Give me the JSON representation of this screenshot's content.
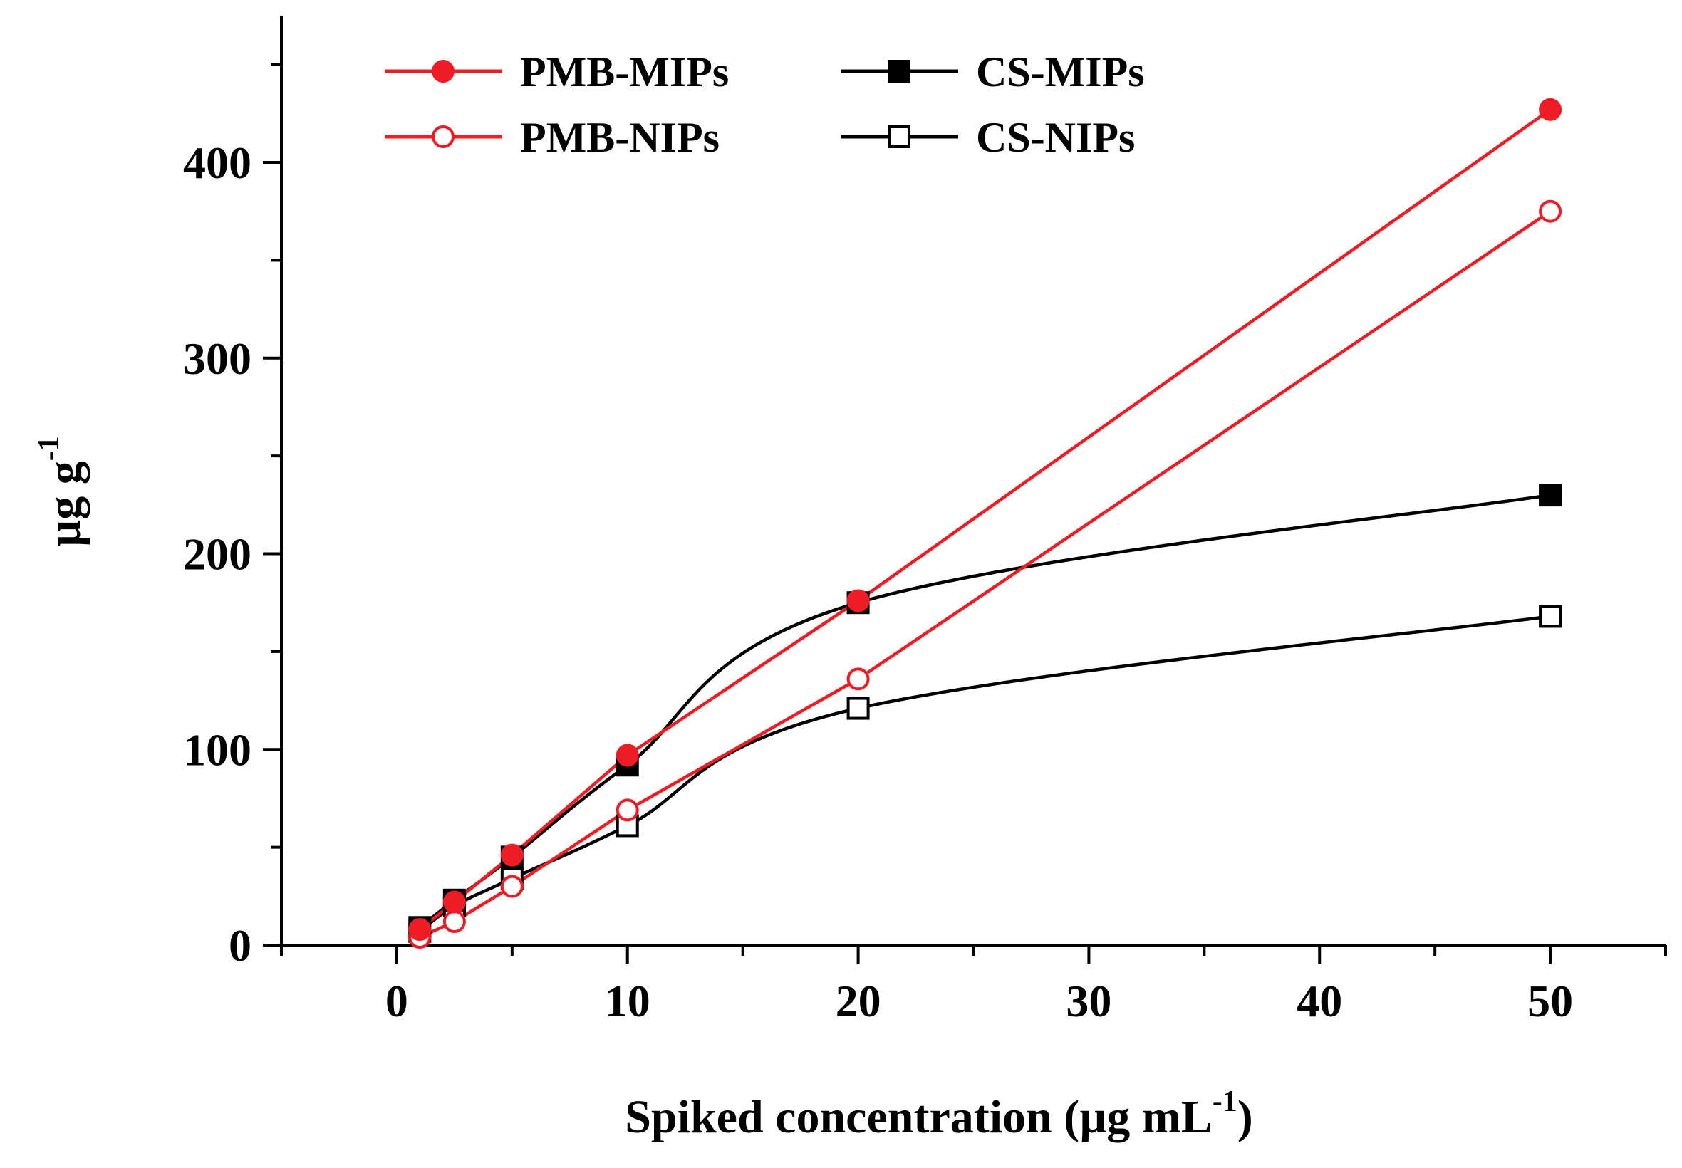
{
  "chart_data": {
    "type": "line",
    "title": "",
    "xlabel": {
      "main": "Spiked concentration (µg mL",
      "sup": "-1",
      "close": ")"
    },
    "ylabel": {
      "main": "µg g",
      "sup": "-1"
    },
    "xlim": [
      -5,
      55
    ],
    "ylim": [
      0,
      475
    ],
    "x_ticks": [
      0,
      10,
      20,
      30,
      40,
      50
    ],
    "y_ticks": [
      0,
      100,
      200,
      300,
      400
    ],
    "x": [
      1,
      2.5,
      5,
      10,
      20,
      50
    ],
    "legend_position": "top-left",
    "series": [
      {
        "name": "PMB-MIPs",
        "color": "#ee1c25",
        "marker": "circle-filled",
        "values": [
          8,
          22,
          46,
          97,
          176,
          427
        ]
      },
      {
        "name": "CS-MIPs",
        "color": "#000000",
        "marker": "square-filled",
        "values": [
          9,
          23,
          45,
          92,
          175,
          230
        ]
      },
      {
        "name": "PMB-NIPs",
        "color": "#ee1c25",
        "marker": "circle-open",
        "values": [
          4,
          12,
          30,
          69,
          136,
          375
        ]
      },
      {
        "name": "CS-NIPs",
        "color": "#000000",
        "marker": "square-open",
        "values": [
          7,
          20,
          34,
          61,
          121,
          168
        ]
      }
    ]
  }
}
